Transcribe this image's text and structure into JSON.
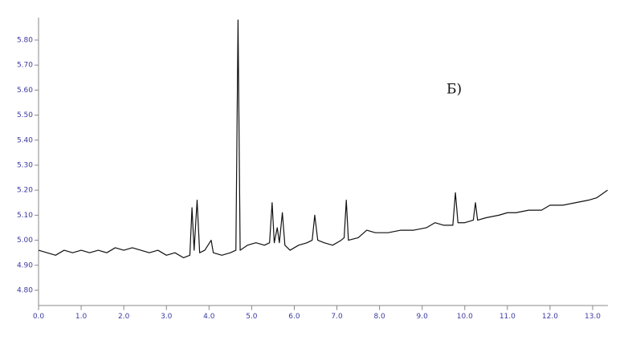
{
  "chart_data": {
    "type": "line",
    "annotation": "Б)",
    "x": [
      0.0,
      0.2,
      0.4,
      0.6,
      0.8,
      1.0,
      1.2,
      1.4,
      1.6,
      1.8,
      2.0,
      2.2,
      2.4,
      2.6,
      2.8,
      3.0,
      3.2,
      3.4,
      3.55,
      3.6,
      3.65,
      3.72,
      3.78,
      3.9,
      4.05,
      4.1,
      4.3,
      4.5,
      4.63,
      4.68,
      4.73,
      4.9,
      5.1,
      5.3,
      5.42,
      5.48,
      5.53,
      5.6,
      5.65,
      5.72,
      5.78,
      5.9,
      6.1,
      6.3,
      6.42,
      6.48,
      6.55,
      6.7,
      6.9,
      7.1,
      7.17,
      7.22,
      7.27,
      7.5,
      7.7,
      7.9,
      8.2,
      8.5,
      8.8,
      9.1,
      9.3,
      9.5,
      9.72,
      9.78,
      9.84,
      10.0,
      10.2,
      10.25,
      10.3,
      10.5,
      10.8,
      11.0,
      11.2,
      11.5,
      11.8,
      12.0,
      12.3,
      12.6,
      12.9,
      13.1,
      13.35
    ],
    "series": [
      {
        "color": "#111111",
        "values": [
          4.96,
          4.95,
          4.94,
          4.96,
          4.95,
          4.96,
          4.95,
          4.96,
          4.95,
          4.97,
          4.96,
          4.97,
          4.96,
          4.95,
          4.96,
          4.94,
          4.95,
          4.93,
          4.94,
          5.13,
          4.96,
          5.16,
          4.95,
          4.96,
          5.0,
          4.95,
          4.94,
          4.95,
          4.96,
          5.88,
          4.96,
          4.98,
          4.99,
          4.98,
          4.99,
          5.15,
          4.99,
          5.05,
          4.99,
          5.11,
          4.98,
          4.96,
          4.98,
          4.99,
          5.0,
          5.1,
          5.0,
          4.99,
          4.98,
          5.0,
          5.01,
          5.16,
          5.0,
          5.01,
          5.04,
          5.03,
          5.03,
          5.04,
          5.04,
          5.05,
          5.07,
          5.06,
          5.06,
          5.19,
          5.07,
          5.07,
          5.08,
          5.15,
          5.08,
          5.09,
          5.1,
          5.11,
          5.11,
          5.12,
          5.12,
          5.14,
          5.14,
          5.15,
          5.16,
          5.17,
          5.2
        ]
      }
    ],
    "xlim": [
      0,
      13.35
    ],
    "ylim": [
      4.74,
      5.88
    ],
    "xticks": [
      {
        "value": 0,
        "label": "0.0"
      },
      {
        "value": 1,
        "label": "1.0"
      },
      {
        "value": 2,
        "label": "2.0"
      },
      {
        "value": 3,
        "label": "3.0"
      },
      {
        "value": 4,
        "label": "4.0"
      },
      {
        "value": 5,
        "label": "5.0"
      },
      {
        "value": 6,
        "label": "6.0"
      },
      {
        "value": 7,
        "label": "7.0"
      },
      {
        "value": 8,
        "label": "8.0"
      },
      {
        "value": 9,
        "label": "9.0"
      },
      {
        "value": 10,
        "label": "10.0"
      },
      {
        "value": 11,
        "label": "11.0"
      },
      {
        "value": 12,
        "label": "12.0"
      },
      {
        "value": 13,
        "label": "13.0"
      }
    ],
    "yticks": [
      {
        "value": 4.8,
        "label": "4.80"
      },
      {
        "value": 4.9,
        "label": "4.90"
      },
      {
        "value": 5.0,
        "label": "5.00"
      },
      {
        "value": 5.1,
        "label": "5.10"
      },
      {
        "value": 5.2,
        "label": "5.20"
      },
      {
        "value": 5.3,
        "label": "5.30"
      },
      {
        "value": 5.4,
        "label": "5.40"
      },
      {
        "value": 5.5,
        "label": "5.50"
      },
      {
        "value": 5.6,
        "label": "5.60"
      },
      {
        "value": 5.7,
        "label": "5.70"
      },
      {
        "value": 5.8,
        "label": "5.80"
      }
    ],
    "grid": false
  }
}
